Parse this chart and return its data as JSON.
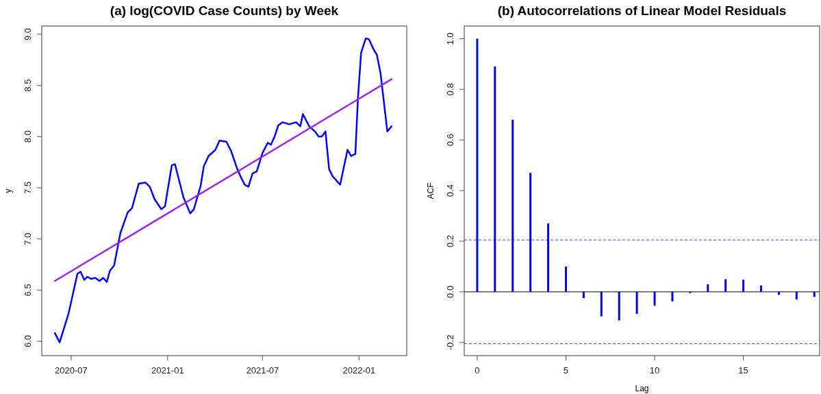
{
  "chart_data": [
    {
      "type": "line",
      "title": "(a) log(COVID Case Counts) by Week",
      "ylabel": "y",
      "xlim": [
        "2020-05-06",
        "2022-04-02"
      ],
      "ylim": [
        5.86,
        9.08
      ],
      "xticks": [
        {
          "value": "2020-07-01",
          "label": "2020-07"
        },
        {
          "value": "2021-01-01",
          "label": "2021-01"
        },
        {
          "value": "2021-07-01",
          "label": "2021-07"
        },
        {
          "value": "2022-01-01",
          "label": "2022-01"
        }
      ],
      "yticks": [
        {
          "value": 6,
          "label": "6.0"
        },
        {
          "value": 6.5,
          "label": "6.5"
        },
        {
          "value": 7,
          "label": "7.0"
        },
        {
          "value": 7.5,
          "label": "7.5"
        },
        {
          "value": 8,
          "label": "8.0"
        },
        {
          "value": 8.5,
          "label": "8.5"
        },
        {
          "value": 9,
          "label": "9.0"
        }
      ],
      "grid": false,
      "series": [
        {
          "color": "#0000ff",
          "x": [
            "2020-05-31",
            "2020-06-09",
            "2020-06-26",
            "2020-07-13",
            "2020-07-19",
            "2020-07-26",
            "2020-08-01",
            "2020-08-08",
            "2020-08-16",
            "2020-08-24",
            "2020-08-31",
            "2020-09-07",
            "2020-09-13",
            "2020-09-21",
            "2020-10-03",
            "2020-10-17",
            "2020-10-25",
            "2020-11-01",
            "2020-11-07",
            "2020-11-20",
            "2020-11-28",
            "2020-12-07",
            "2020-12-20",
            "2020-12-27",
            "2021-01-09",
            "2021-01-15",
            "2021-01-31",
            "2021-02-13",
            "2021-02-20",
            "2021-03-05",
            "2021-03-11",
            "2021-03-20",
            "2021-04-02",
            "2021-04-10",
            "2021-04-23",
            "2021-05-02",
            "2021-05-14",
            "2021-05-22",
            "2021-05-28",
            "2021-06-04",
            "2021-06-12",
            "2021-06-20",
            "2021-07-01",
            "2021-07-11",
            "2021-07-17",
            "2021-07-24",
            "2021-07-31",
            "2021-08-08",
            "2021-08-21",
            "2021-09-03",
            "2021-09-11",
            "2021-09-16",
            "2021-09-28",
            "2021-10-09",
            "2021-10-16",
            "2021-10-22",
            "2021-10-29",
            "2021-11-05",
            "2021-11-12",
            "2021-11-26",
            "2021-12-10",
            "2021-12-17",
            "2021-12-25",
            "2021-12-30",
            "2022-01-05",
            "2022-01-14",
            "2022-01-20",
            "2022-01-29",
            "2022-02-04",
            "2022-02-11",
            "2022-02-24",
            "2022-03-04"
          ],
          "values": [
            6.08,
            5.99,
            6.27,
            6.66,
            6.68,
            6.6,
            6.63,
            6.61,
            6.62,
            6.59,
            6.62,
            6.58,
            6.69,
            6.74,
            7.06,
            7.26,
            7.3,
            7.43,
            7.54,
            7.55,
            7.51,
            7.39,
            7.29,
            7.32,
            7.72,
            7.73,
            7.41,
            7.25,
            7.29,
            7.52,
            7.71,
            7.81,
            7.87,
            7.96,
            7.95,
            7.86,
            7.68,
            7.59,
            7.53,
            7.51,
            7.64,
            7.66,
            7.84,
            7.94,
            7.92,
            8.0,
            8.11,
            8.14,
            8.12,
            8.14,
            8.1,
            8.22,
            8.1,
            8.05,
            8.0,
            8.0,
            8.05,
            7.68,
            7.61,
            7.53,
            7.87,
            7.81,
            7.83,
            8.38,
            8.82,
            8.96,
            8.95,
            8.85,
            8.8,
            8.62,
            8.05,
            8.1
          ]
        },
        {
          "type": "line",
          "color": "#a020f0",
          "x": [
            "2020-05-31",
            "2022-03-04"
          ],
          "values": [
            6.59,
            8.56
          ]
        }
      ]
    },
    {
      "type": "bar",
      "title": "(b) Autocorrelations of Linear Model Residuals",
      "xlabel": "Lag",
      "ylabel": "ACF",
      "x": [
        0,
        1,
        2,
        3,
        4,
        5,
        6,
        7,
        8,
        9,
        10,
        11,
        12,
        13,
        14,
        15,
        16,
        17,
        18,
        19
      ],
      "values": [
        1.0,
        0.89,
        0.68,
        0.47,
        0.27,
        0.1,
        -0.025,
        -0.097,
        -0.113,
        -0.087,
        -0.055,
        -0.038,
        -0.005,
        0.03,
        0.05,
        0.048,
        0.025,
        -0.012,
        -0.03,
        -0.02
      ],
      "color": "#0000ff",
      "xlim": [
        -0.73,
        19.3
      ],
      "ylim": [
        -0.252,
        1.05
      ],
      "xticks": [
        0,
        5,
        10,
        15
      ],
      "yticks": [
        {
          "value": -0.2,
          "label": "-0.2"
        },
        {
          "value": 0,
          "label": "0.0"
        },
        {
          "value": 0.2,
          "label": "0.2"
        },
        {
          "value": 0.4,
          "label": "0.4"
        },
        {
          "value": 0.6,
          "label": "0.6"
        },
        {
          "value": 0.8,
          "label": "0.8"
        },
        {
          "value": 1,
          "label": "1.0"
        }
      ],
      "grid": false,
      "ref_lines": [
        {
          "axis": "y",
          "value": 0,
          "color": "#000000",
          "line_style": "solid"
        },
        {
          "axis": "y",
          "value": 0.205,
          "color": "#4040ff",
          "line_style": "dashed"
        },
        {
          "axis": "y",
          "value": -0.205,
          "color": "#4040ff",
          "line_style": "dashed"
        }
      ]
    }
  ]
}
